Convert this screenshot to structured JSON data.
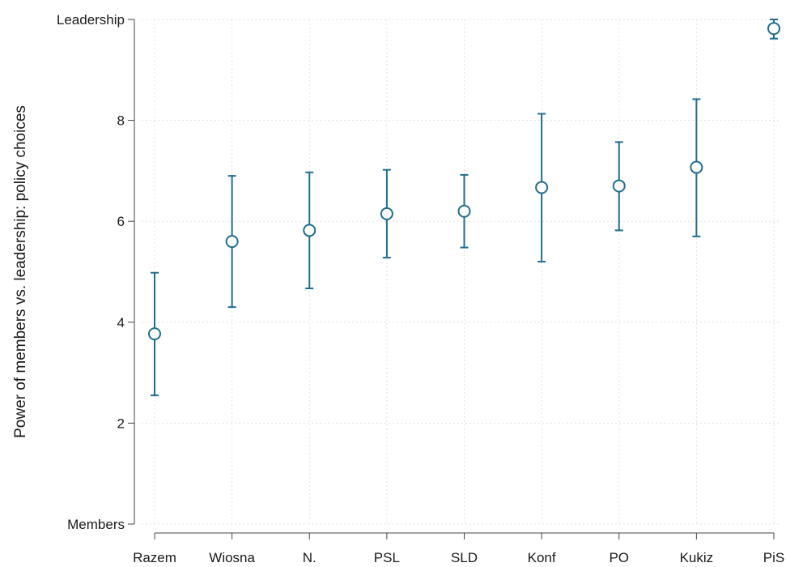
{
  "chart_data": {
    "type": "scatter",
    "title": "",
    "xlabel": "",
    "ylabel": "Power of members vs. leadership: policy choices",
    "categories": [
      "Razem",
      "Wiosna",
      "N.",
      "PSL",
      "SLD",
      "Konf",
      "PO",
      "Kukiz",
      "PiS"
    ],
    "ylim": [
      0,
      10
    ],
    "yticks": [
      {
        "value": 0,
        "label": "Members"
      },
      {
        "value": 2,
        "label": "2"
      },
      {
        "value": 4,
        "label": "4"
      },
      {
        "value": 6,
        "label": "6"
      },
      {
        "value": 8,
        "label": "8"
      },
      {
        "value": 10,
        "label": "Leadership"
      }
    ],
    "grid": true,
    "legend": "none",
    "series": [
      {
        "values": [
          3.77,
          5.6,
          5.82,
          6.15,
          6.2,
          6.67,
          6.7,
          7.07,
          9.82
        ],
        "lower": [
          2.55,
          4.3,
          4.67,
          5.28,
          5.48,
          5.2,
          5.82,
          5.7,
          9.62
        ],
        "upper": [
          4.98,
          6.9,
          6.97,
          7.02,
          6.92,
          8.13,
          7.57,
          8.42,
          10.0
        ]
      }
    ],
    "color": "#1f6e91",
    "grid_color": "#e1e1e1"
  }
}
